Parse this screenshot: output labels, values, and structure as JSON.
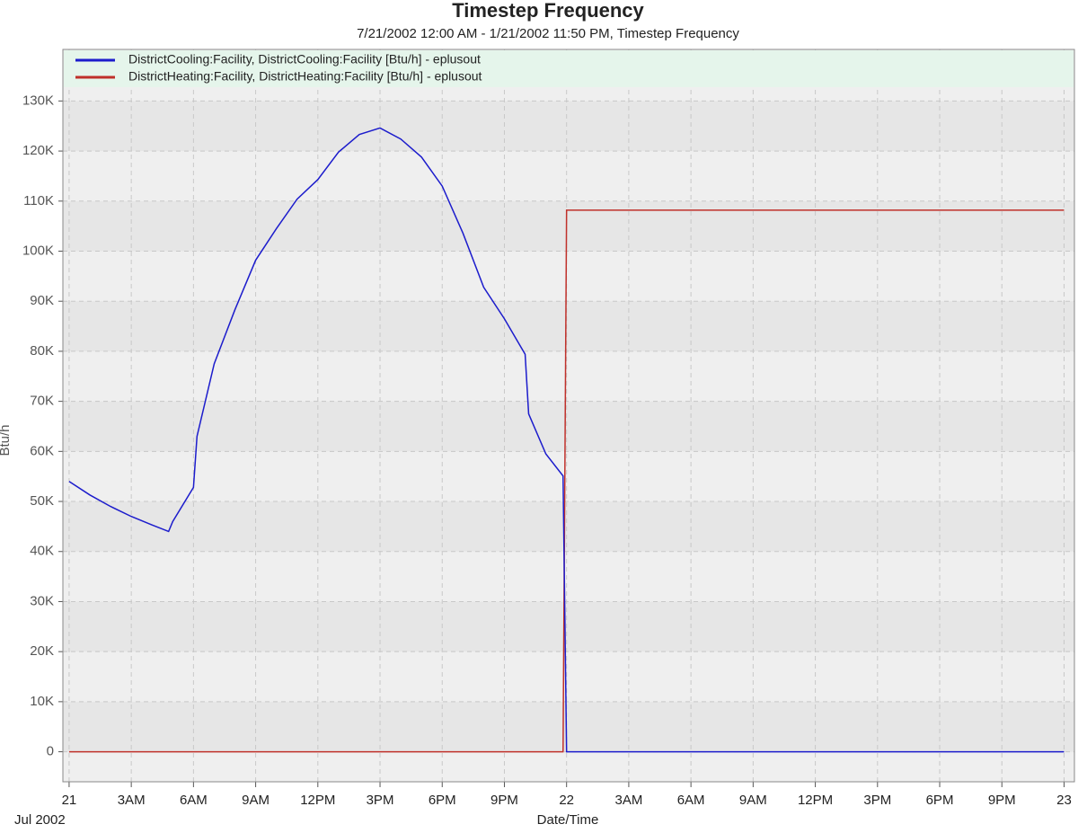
{
  "chart_data": {
    "type": "line",
    "title": "Timestep Frequency",
    "subtitle": "7/21/2002 12:00 AM - 1/21/2002 11:50 PM, Timestep Frequency",
    "x_label": "Date/Time",
    "x_sublabel": "Jul 2002",
    "y_label": "Btu/h",
    "x": [
      0,
      1,
      2,
      3,
      4,
      4.8,
      5,
      6,
      6.17,
      7,
      8,
      9,
      10,
      11,
      12,
      13,
      14,
      15,
      16,
      17,
      18,
      19,
      20,
      21,
      22,
      22.17,
      23,
      23.83,
      24,
      48
    ],
    "series": [
      {
        "name": "DistrictCooling:Facility,  DistrictCooling:Facility [Btu/h]  - eplusout",
        "color": "#1c1ccc",
        "values": [
          54000,
          51300,
          49000,
          47000,
          45300,
          44000,
          46000,
          52800,
          63000,
          77500,
          88300,
          98200,
          104500,
          110400,
          114300,
          119800,
          123300,
          124600,
          122400,
          118800,
          113000,
          103600,
          92800,
          86500,
          79400,
          67500,
          59500,
          55100,
          0,
          0
        ]
      },
      {
        "name": "DistrictHeating:Facility,  DistrictHeating:Facility [Btu/h]  - eplusout",
        "color": "#c0302a",
        "values": [
          0,
          0,
          0,
          0,
          0,
          0,
          0,
          0,
          0,
          0,
          0,
          0,
          0,
          0,
          0,
          0,
          0,
          0,
          0,
          0,
          0,
          0,
          0,
          0,
          0,
          0,
          0,
          0,
          108200,
          108200
        ]
      }
    ],
    "xlim": [
      -0.3,
      48.5
    ],
    "ylim": [
      -6000,
      140300
    ],
    "xticks": [
      {
        "value": 0,
        "label": "21"
      },
      {
        "value": 3,
        "label": "3AM"
      },
      {
        "value": 6,
        "label": "6AM"
      },
      {
        "value": 9,
        "label": "9AM"
      },
      {
        "value": 12,
        "label": "12PM"
      },
      {
        "value": 15,
        "label": "3PM"
      },
      {
        "value": 18,
        "label": "6PM"
      },
      {
        "value": 21,
        "label": "9PM"
      },
      {
        "value": 24,
        "label": "22"
      },
      {
        "value": 27,
        "label": "3AM"
      },
      {
        "value": 30,
        "label": "6AM"
      },
      {
        "value": 33,
        "label": "9AM"
      },
      {
        "value": 36,
        "label": "12PM"
      },
      {
        "value": 39,
        "label": "3PM"
      },
      {
        "value": 42,
        "label": "6PM"
      },
      {
        "value": 45,
        "label": "9PM"
      },
      {
        "value": 48,
        "label": "23"
      }
    ],
    "yticks": [
      0,
      {
        "value": 10000,
        "label": "10K"
      },
      {
        "value": 20000,
        "label": "20K"
      },
      {
        "value": 30000,
        "label": "30K"
      },
      {
        "value": 40000,
        "label": "40K"
      },
      {
        "value": 50000,
        "label": "50K"
      },
      {
        "value": 60000,
        "label": "60K"
      },
      {
        "value": 70000,
        "label": "70K"
      },
      {
        "value": 80000,
        "label": "80K"
      },
      {
        "value": 90000,
        "label": "90K"
      },
      {
        "value": 100000,
        "label": "100K"
      },
      {
        "value": 110000,
        "label": "110K"
      },
      {
        "value": 120000,
        "label": "120K"
      },
      {
        "value": 130000,
        "label": "130K"
      }
    ],
    "grid": true,
    "legend": "top"
  }
}
